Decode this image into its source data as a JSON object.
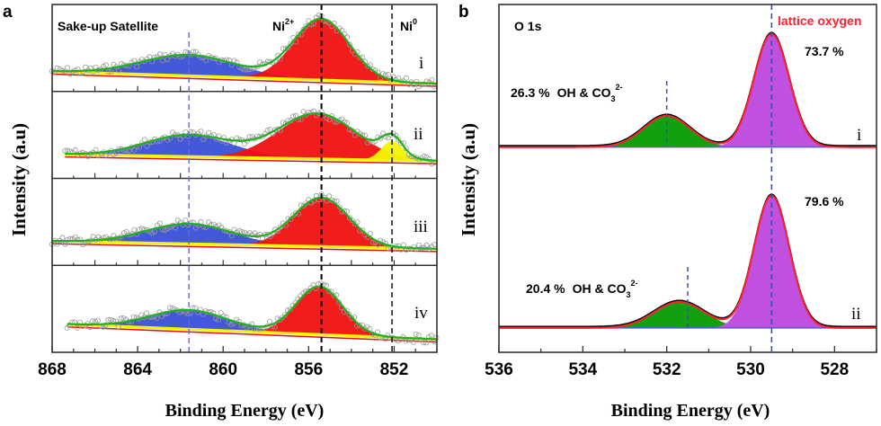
{
  "chart_data": [
    {
      "type": "line",
      "panel_label": "a",
      "xlabel": "Binding Energy (eV)",
      "ylabel": "Intensity (a.u)",
      "xlim": [
        868,
        850
      ],
      "ylim": [
        0,
        100
      ],
      "x_ticks": [
        868,
        864,
        860,
        856,
        852
      ],
      "x_tick_labels": [
        "868",
        "864",
        "860",
        "856",
        "852"
      ],
      "minor_tick_step": 1,
      "stacked": true,
      "reference_lines": [
        {
          "label": "Sake-up Satellite",
          "x": 861.6,
          "color": "#6a6ad0"
        },
        {
          "label": "Ni",
          "sup": "2+",
          "x": 855.4,
          "color": "#000000"
        },
        {
          "label": "Ni",
          "sup": "0",
          "x": 852.1,
          "color": "#000000"
        }
      ],
      "spectra": [
        {
          "label": "i",
          "x_start": 868,
          "background": [
            23,
            9
          ],
          "components": [
            {
              "name": "Sake-up Satellite",
              "center": 861.6,
              "height": 24,
              "sigma": 2.2,
              "color": "#3a4fd8"
            },
            {
              "name": "Ni2+",
              "center": 855.4,
              "height": 70,
              "sigma": 1.3,
              "color": "#f01010"
            }
          ]
        },
        {
          "label": "ii",
          "x_start": 867.4,
          "background": [
            28,
            20
          ],
          "components": [
            {
              "name": "Sake-up Satellite",
              "center": 861.6,
              "height": 25,
              "sigma": 2.0,
              "color": "#3a4fd8"
            },
            {
              "name": "Ni2+",
              "center": 855.6,
              "height": 52,
              "sigma": 1.8,
              "color": "#f01010"
            },
            {
              "name": "Ni0",
              "center": 852.1,
              "height": 22,
              "sigma": 0.5,
              "color": "#f5f500"
            }
          ]
        },
        {
          "label": "iii",
          "x_start": 868,
          "background": [
            28,
            19
          ],
          "components": [
            {
              "name": "Sake-up Satellite",
              "center": 861.6,
              "height": 23,
              "sigma": 2.0,
              "color": "#3a4fd8"
            },
            {
              "name": "Ni2+",
              "center": 855.4,
              "height": 56,
              "sigma": 1.3,
              "color": "#f01010"
            }
          ]
        },
        {
          "label": "iv",
          "x_start": 867.3,
          "background": [
            33,
            15
          ],
          "components": [
            {
              "name": "Sake-up Satellite",
              "center": 861.6,
              "height": 22,
              "sigma": 1.8,
              "color": "#3a4fd8"
            },
            {
              "name": "Ni2+",
              "center": 855.5,
              "height": 55,
              "sigma": 1.1,
              "color": "#f01010"
            }
          ]
        }
      ],
      "annotations": {
        "satellite": "Sake-up Satellite",
        "ni2_base": "Ni",
        "ni2_sup": "2+",
        "ni0_base": "Ni",
        "ni0_sup": "0"
      },
      "colors": {
        "data_points": "#999999",
        "fit": "#20b020",
        "background_line": "#f5f500"
      }
    },
    {
      "type": "line",
      "panel_label": "b",
      "title": "O 1s",
      "xlabel": "Binding Energy (eV)",
      "ylabel": "Intensity (a.u)",
      "xlim": [
        536,
        527
      ],
      "ylim": [
        0,
        100
      ],
      "x_ticks": [
        536,
        534,
        532,
        530,
        528
      ],
      "x_tick_labels": [
        "536",
        "534",
        "532",
        "530",
        "528"
      ],
      "minor_tick_step": 1,
      "spectra": [
        {
          "label": "i",
          "baseline": 59,
          "components": [
            {
              "name": "OH & CO3 2-",
              "center": 532.0,
              "height": 9,
              "sigma": 0.55,
              "color": "#10a010",
              "percent_label": "26.3 %",
              "marker_x": 532.0
            },
            {
              "name": "lattice oxygen",
              "center": 529.5,
              "height": 32.5,
              "sigma": 0.42,
              "color": "#c050e0",
              "percent_label": "73.7 %",
              "marker_x": 529.5
            }
          ]
        },
        {
          "label": "ii",
          "baseline": 7,
          "components": [
            {
              "name": "OH & CO3 2-",
              "center": 531.7,
              "height": 7.5,
              "sigma": 0.6,
              "color": "#10a010",
              "percent_label": "20.4 %",
              "marker_x": 531.5
            },
            {
              "name": "lattice oxygen",
              "center": 529.5,
              "height": 38,
              "sigma": 0.42,
              "color": "#c050e0",
              "percent_label": "79.6 %",
              "marker_x": 529.5
            }
          ]
        }
      ],
      "annotations": {
        "lattice": "lattice oxygen",
        "i_lattice_pct": "73.7 %",
        "i_oh_pct": "26.3 %",
        "ii_lattice_pct": "79.6 %",
        "ii_oh_pct": "20.4 %",
        "oh_text": "OH & CO",
        "oh_sub": "3",
        "oh_sup": "2-"
      },
      "colors": {
        "data": "#000000",
        "fit": "#ff2030",
        "lattice_label": "#ff2030"
      }
    }
  ]
}
